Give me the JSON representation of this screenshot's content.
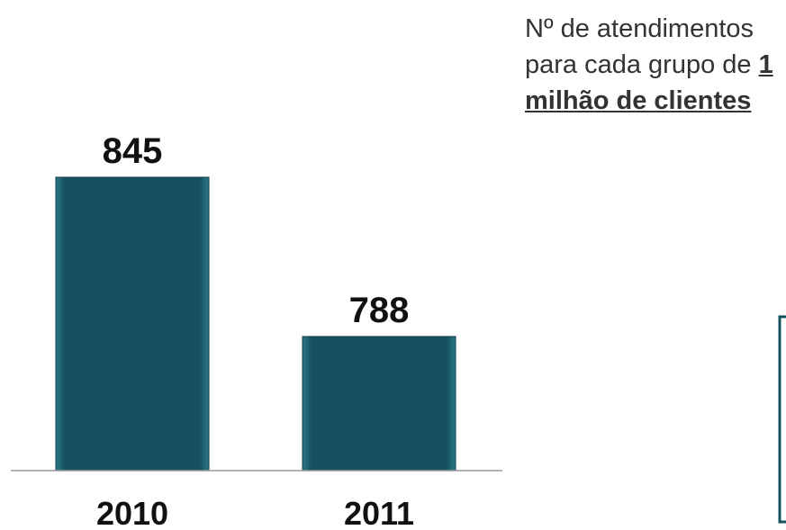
{
  "chart_data": {
    "type": "bar",
    "categories": [
      "2010",
      "2011"
    ],
    "values": [
      845,
      788
    ],
    "color": "#17505e",
    "ylim": [
      740,
      860
    ],
    "annotation": {
      "text": "Nº de atendimentos para cada grupo de",
      "emphasis": "1 milhão de clientes"
    }
  }
}
